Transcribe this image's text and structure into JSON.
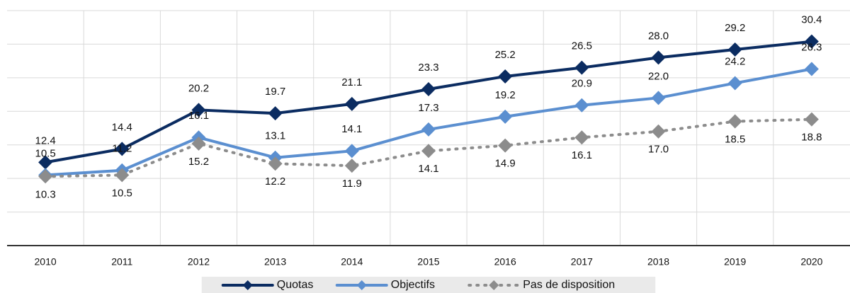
{
  "chart_data": {
    "type": "line",
    "categories": [
      "2010",
      "2011",
      "2012",
      "2013",
      "2014",
      "2015",
      "2016",
      "2017",
      "2018",
      "2019",
      "2020"
    ],
    "series": [
      {
        "name": "Quotas",
        "color": "#0b2c61",
        "line_style": "solid",
        "values": [
          12.4,
          14.4,
          20.2,
          19.7,
          21.1,
          23.3,
          25.2,
          26.5,
          28.0,
          29.2,
          30.4
        ],
        "value_labels": [
          "12.4",
          "14.4",
          "20.2",
          "19.7",
          "21.1",
          "23.3",
          "25.2",
          "26.5",
          "28.0",
          "29.2",
          "30.4"
        ],
        "label_position": "above"
      },
      {
        "name": "Objectifs",
        "color": "#5b8fd0",
        "line_style": "solid",
        "values": [
          10.5,
          11.2,
          16.1,
          13.1,
          14.1,
          17.3,
          19.2,
          20.9,
          22.0,
          24.2,
          26.3
        ],
        "value_labels": [
          "10.5",
          "11.2",
          "16.1",
          "13.1",
          "14.1",
          "17.3",
          "19.2",
          "20.9",
          "22.0",
          "24.2",
          "26.3"
        ],
        "label_position": "above"
      },
      {
        "name": "Pas de disposition",
        "color": "#8c8c8c",
        "line_style": "dotted",
        "values": [
          10.3,
          10.5,
          15.2,
          12.2,
          11.9,
          14.1,
          14.9,
          16.1,
          17.0,
          18.5,
          18.8
        ],
        "value_labels": [
          "10.3",
          "10.5",
          "15.2",
          "12.2",
          "11.9",
          "14.1",
          "14.9",
          "16.1",
          "17.0",
          "18.5",
          "18.8"
        ],
        "label_position": "below"
      }
    ],
    "ylim": [
      0,
      35
    ],
    "yticks": [
      0,
      5,
      10,
      15,
      20,
      25,
      30,
      35
    ],
    "grid": true,
    "legend": "bottom"
  }
}
